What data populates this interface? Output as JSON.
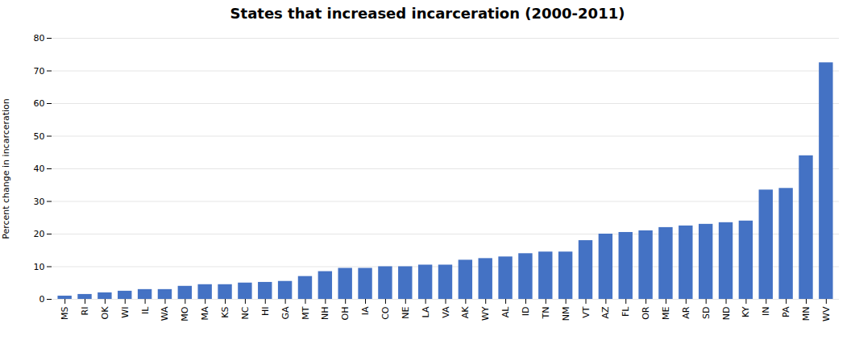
{
  "chart_data": {
    "type": "bar",
    "title": "States that increased incarceration (2000-2011)",
    "ylabel": "Percent change in incarceration",
    "categories": [
      "MS",
      "RI",
      "OK",
      "WI",
      "IL",
      "WA",
      "MO",
      "MA",
      "KS",
      "NC",
      "HI",
      "GA",
      "MT",
      "NH",
      "OH",
      "IA",
      "CO",
      "NE",
      "LA",
      "VA",
      "AK",
      "WY",
      "AL",
      "ID",
      "TN",
      "NM",
      "VT",
      "AZ",
      "FL",
      "OR",
      "ME",
      "AR",
      "SD",
      "ND",
      "KY",
      "IN",
      "PA",
      "MN",
      "WV"
    ],
    "values": [
      1,
      1.5,
      2,
      2.5,
      3,
      3,
      4,
      4.5,
      4.5,
      5,
      5.2,
      5.5,
      7,
      8.5,
      9.5,
      9.5,
      10,
      10,
      10.5,
      10.5,
      12,
      12.5,
      13,
      14,
      14.5,
      14.5,
      18,
      20,
      20.5,
      21,
      22,
      22.5,
      23,
      23.5,
      24,
      33.5,
      34,
      44,
      72.5
    ],
    "color": "#4472C4",
    "ylim": [
      0,
      80
    ],
    "yticks": [
      0,
      10,
      20,
      30,
      40,
      50,
      60,
      70,
      80
    ],
    "grid": true
  }
}
